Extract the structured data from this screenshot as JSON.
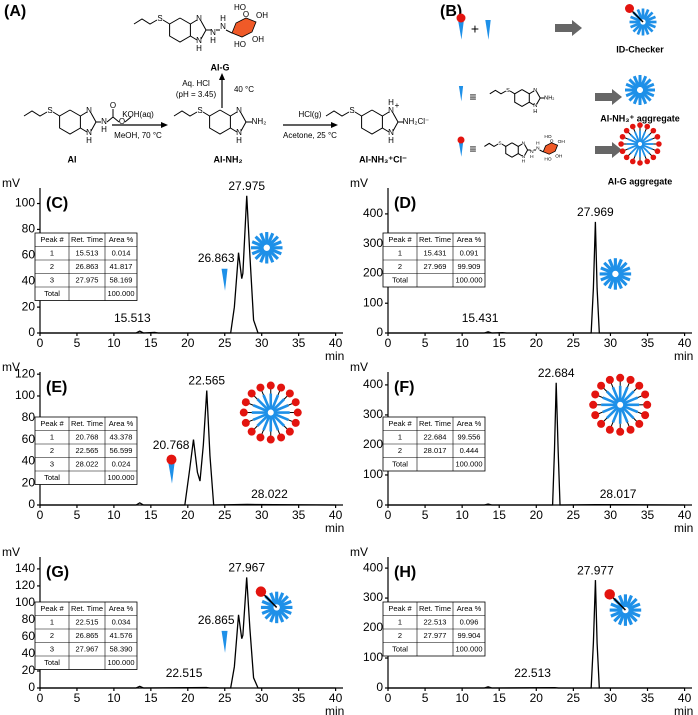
{
  "scheme": {
    "panel_a": {
      "label": "(A)",
      "ai": "AI",
      "ai_nh2": "AI-NH₂",
      "ai_nh3": "AI-NH₃⁺Cl⁻",
      "ai_g": "AI-G",
      "step1_top": "KOH(aq)",
      "step1_bottom": "MeOH, 70 °C",
      "step2_top": "HCl(g)",
      "step2_bottom": "Acetone, 25 °C",
      "step3_left1": "Aq. HCl",
      "step3_left2": "(pH = 3.45)",
      "step3_right": "40 °C"
    },
    "panel_b": {
      "label": "(B)",
      "plus": "+",
      "equiv": "≡",
      "id_checker": "ID-Checker",
      "agg1": "AI-NH₃⁺ aggregate",
      "agg2": "AI-G aggregate"
    },
    "atoms": {
      "S": "S",
      "N": "N",
      "H": "H",
      "NH2": "NH₂",
      "NH2Cl": "NH₂Cl⁻",
      "plus": "+",
      "O": "O",
      "OH": "OH",
      "HO": "HO"
    }
  },
  "chart_data": [
    {
      "type": "line",
      "panel": "(C)",
      "y_label": "mV",
      "x_label": "min",
      "color": "#000000",
      "x": [
        0,
        13,
        13.5,
        14,
        15.513,
        16,
        25.8,
        26.3,
        26.863,
        27.3,
        27.45,
        27.975,
        28.4,
        28.9,
        29.5,
        40
      ],
      "values": [
        0,
        0,
        1.5,
        0,
        0.5,
        0,
        0,
        20,
        62,
        42,
        46,
        106,
        60,
        10,
        0,
        0
      ],
      "xlim": [
        0,
        41
      ],
      "ylim": [
        0,
        112
      ],
      "xticks": [
        0,
        5,
        10,
        15,
        20,
        25,
        30,
        35,
        40
      ],
      "yticks": [
        0,
        20,
        40,
        60,
        80,
        100
      ],
      "peak_labels": [
        {
          "x": 15.513,
          "y": 0.5,
          "side": "left"
        },
        {
          "x": 26.863,
          "y": 62,
          "side": "left",
          "icon": "wedge"
        },
        {
          "x": 27.975,
          "y": 106,
          "side": "top",
          "icon": "sun"
        }
      ],
      "table": {
        "header": [
          "Peak #",
          "Ret. Time",
          "Area %"
        ],
        "rows": [
          [
            "1",
            "15.513",
            "0.014"
          ],
          [
            "2",
            "26.863",
            "41.817"
          ],
          [
            "3",
            "27.975",
            "58.169"
          ]
        ],
        "total": [
          "Total",
          "100.000"
        ]
      }
    },
    {
      "type": "line",
      "panel": "(D)",
      "y_label": "mV",
      "x_label": "min",
      "color": "#000000",
      "x": [
        0,
        13,
        13.5,
        14,
        15.431,
        16,
        27.4,
        27.7,
        27.969,
        28.2,
        28.5,
        40
      ],
      "values": [
        0,
        0,
        4,
        0,
        1,
        0,
        0,
        150,
        373,
        150,
        0,
        0
      ],
      "xlim": [
        0,
        41
      ],
      "ylim": [
        0,
        487
      ],
      "xticks": [
        0,
        5,
        10,
        15,
        20,
        25,
        30,
        35,
        40
      ],
      "yticks": [
        0,
        100,
        200,
        300,
        400
      ],
      "peak_labels": [
        {
          "x": 15.431,
          "y": 1,
          "side": "left"
        },
        {
          "x": 27.969,
          "y": 373,
          "side": "top",
          "icon": "sun"
        }
      ],
      "table": {
        "header": [
          "Peak #",
          "Ret. Time",
          "Area %"
        ],
        "rows": [
          [
            "1",
            "15.431",
            "0.091"
          ],
          [
            "2",
            "27.969",
            "99.909"
          ]
        ],
        "total": [
          "Total",
          "100.000"
        ]
      }
    },
    {
      "type": "line",
      "panel": "(E)",
      "y_label": "mV",
      "x_label": "min",
      "color": "#000000",
      "x": [
        0,
        13,
        13.5,
        14,
        19.6,
        20.2,
        20.768,
        21.3,
        21.65,
        22.1,
        22.565,
        23,
        23.5,
        28.022,
        40
      ],
      "values": [
        0,
        0,
        2,
        0,
        0,
        30,
        60,
        30,
        22,
        55,
        105,
        45,
        0,
        0.5,
        0
      ],
      "xlim": [
        0,
        41
      ],
      "ylim": [
        0,
        122
      ],
      "xticks": [
        0,
        5,
        10,
        15,
        20,
        25,
        30,
        35,
        40
      ],
      "yticks": [
        0,
        20,
        40,
        60,
        80,
        100,
        120
      ],
      "peak_labels": [
        {
          "x": 20.768,
          "y": 60,
          "side": "left",
          "icon": "lollipop"
        },
        {
          "x": 22.565,
          "y": 105,
          "side": "top",
          "icon": "ballsun"
        },
        {
          "x": 28.022,
          "y": 0.5,
          "side": "right"
        }
      ],
      "table": {
        "header": [
          "Peak #",
          "Ret. Time",
          "Area %"
        ],
        "rows": [
          [
            "1",
            "20.768",
            "43.378"
          ],
          [
            "2",
            "22.565",
            "56.599"
          ],
          [
            "3",
            "28.022",
            "0.024"
          ]
        ],
        "total": [
          "Total",
          "100.000"
        ]
      }
    },
    {
      "type": "line",
      "panel": "(F)",
      "y_label": "mV",
      "x_label": "min",
      "color": "#000000",
      "x": [
        0,
        13,
        13.5,
        14,
        22.2,
        22.45,
        22.684,
        22.95,
        23.2,
        28.017,
        40
      ],
      "values": [
        0,
        0,
        3,
        0,
        0,
        180,
        407,
        180,
        0,
        1,
        0
      ],
      "xlim": [
        0,
        41
      ],
      "ylim": [
        0,
        443
      ],
      "xticks": [
        0,
        5,
        10,
        15,
        20,
        25,
        30,
        35,
        40
      ],
      "yticks": [
        0,
        100,
        200,
        300,
        400
      ],
      "peak_labels": [
        {
          "x": 22.684,
          "y": 407,
          "side": "top",
          "icon": "ballsun"
        },
        {
          "x": 28.017,
          "y": 1,
          "side": "right"
        }
      ],
      "table": {
        "header": [
          "Peak #",
          "Ret. Time",
          "Area %"
        ],
        "rows": [
          [
            "1",
            "22.684",
            "99.556"
          ],
          [
            "2",
            "28.017",
            "0.444"
          ]
        ],
        "total": [
          "Total",
          "100.000"
        ]
      }
    },
    {
      "type": "line",
      "panel": "(G)",
      "y_label": "mV",
      "x_label": "min",
      "color": "#000000",
      "x": [
        0,
        13,
        13.5,
        14,
        22.515,
        23,
        25.8,
        26.3,
        26.865,
        27.3,
        27.45,
        27.967,
        28.4,
        28.9,
        29.5,
        40
      ],
      "values": [
        0,
        0,
        2,
        0,
        0.5,
        0,
        0,
        25,
        86,
        58,
        62,
        130,
        70,
        12,
        0,
        0
      ],
      "xlim": [
        0,
        41
      ],
      "ylim": [
        0,
        154
      ],
      "xticks": [
        0,
        5,
        10,
        15,
        20,
        25,
        30,
        35,
        40
      ],
      "yticks": [
        0,
        20,
        40,
        60,
        80,
        100,
        120,
        140
      ],
      "peak_labels": [
        {
          "x": 22.515,
          "y": 0.5,
          "side": "left"
        },
        {
          "x": 26.865,
          "y": 86,
          "side": "left",
          "icon": "wedge"
        },
        {
          "x": 27.967,
          "y": 130,
          "side": "top",
          "icon": "onesun"
        }
      ],
      "table": {
        "header": [
          "Peak #",
          "Ret. Time",
          "Area %"
        ],
        "rows": [
          [
            "1",
            "22.515",
            "0.034"
          ],
          [
            "2",
            "26.865",
            "41.576"
          ],
          [
            "3",
            "27.967",
            "58.390"
          ]
        ],
        "total": [
          "Total",
          "100.000"
        ]
      }
    },
    {
      "type": "line",
      "panel": "(H)",
      "y_label": "mV",
      "x_label": "min",
      "color": "#000000",
      "x": [
        0,
        13,
        13.5,
        14,
        22.513,
        23,
        27.4,
        27.7,
        27.977,
        28.2,
        28.5,
        40
      ],
      "values": [
        0,
        0,
        4,
        0,
        1,
        0,
        0,
        150,
        360,
        150,
        0,
        0
      ],
      "xlim": [
        0,
        41
      ],
      "ylim": [
        0,
        437
      ],
      "xticks": [
        0,
        5,
        10,
        15,
        20,
        25,
        30,
        35,
        40
      ],
      "yticks": [
        0,
        100,
        200,
        300,
        400
      ],
      "peak_labels": [
        {
          "x": 22.513,
          "y": 1,
          "side": "left"
        },
        {
          "x": 27.977,
          "y": 360,
          "side": "top",
          "icon": "onesun"
        }
      ],
      "table": {
        "header": [
          "Peak #",
          "Ret. Time",
          "Area %"
        ],
        "rows": [
          [
            "1",
            "22.513",
            "0.096"
          ],
          [
            "2",
            "27.977",
            "99.904"
          ]
        ],
        "total": [
          "Total",
          "100.000"
        ]
      }
    }
  ]
}
